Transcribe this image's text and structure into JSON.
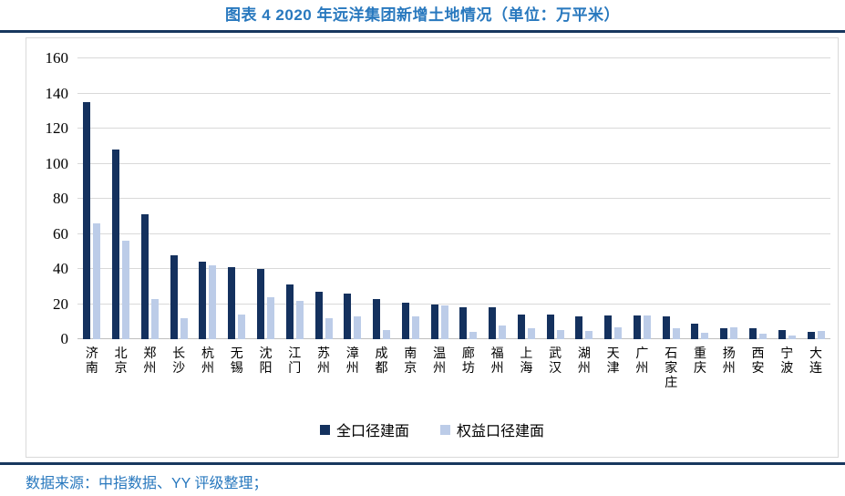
{
  "header": {
    "title": "图表 4 2020 年远洋集团新增土地情况（单位：万平米）"
  },
  "footer": {
    "source": "数据来源：中指数据、YY 评级整理；"
  },
  "colors": {
    "title_blue": "#2878BE",
    "divider_navy": "#17375E",
    "bar_dark": "#14315E",
    "bar_light": "#BCCCE8",
    "gridline": "#D9D9D9",
    "axis_line": "#BFBFBF",
    "footer_blue": "#2878BE"
  },
  "chart_data": {
    "type": "bar",
    "title": "图表 4 2020 年远洋集团新增土地情况（单位：万平米）",
    "xlabel": "",
    "ylabel": "",
    "ylim": [
      0,
      160
    ],
    "ytick_step": 20,
    "grid": true,
    "legend_position": "bottom",
    "categories": [
      "济南",
      "北京",
      "郑州",
      "长沙",
      "杭州",
      "无锡",
      "沈阳",
      "江门",
      "苏州",
      "漳州",
      "成都",
      "南京",
      "温州",
      "廊坊",
      "福州",
      "上海",
      "武汉",
      "湖州",
      "天津",
      "广州",
      "石家庄",
      "重庆",
      "扬州",
      "西安",
      "宁波",
      "大连"
    ],
    "series": [
      {
        "name": "全口径建面",
        "color": "#14315E",
        "values": [
          135,
          108,
          71,
          48,
          44,
          41,
          40,
          31,
          27,
          26,
          23,
          21,
          20,
          18,
          18,
          14,
          14,
          13,
          13.5,
          13.5,
          13,
          9,
          6.5,
          6,
          5,
          4
        ]
      },
      {
        "name": "权益口径建面",
        "color": "#BCCCE8",
        "values": [
          66,
          56,
          23,
          12,
          42,
          14,
          24,
          22,
          12,
          13,
          5,
          13,
          19,
          4,
          8,
          6,
          5,
          4.5,
          7,
          13.5,
          6,
          3.5,
          7,
          3,
          2,
          4.5
        ]
      }
    ]
  }
}
